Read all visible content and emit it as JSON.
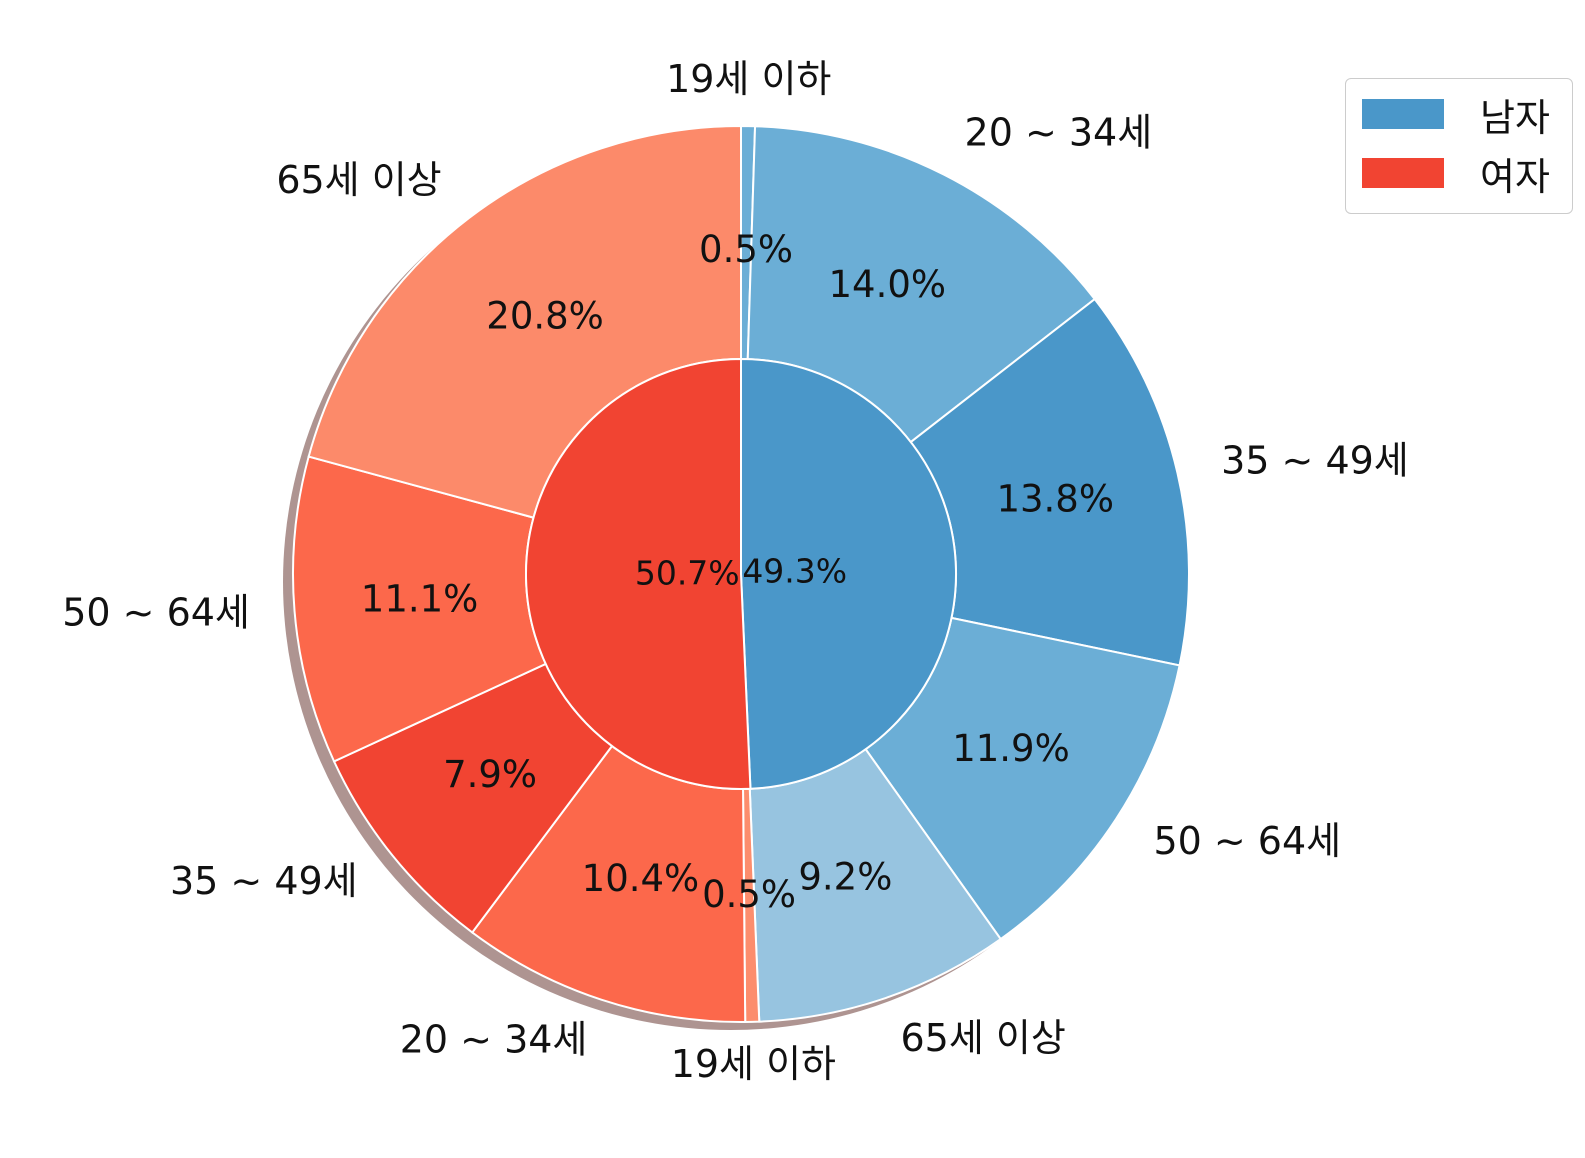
{
  "chart_data": {
    "type": "pie",
    "variant": "nested-donut",
    "shadow": true,
    "legend": {
      "position": "top-right",
      "entries": [
        {
          "label": "남자",
          "color": "#4a97c9"
        },
        {
          "label": "여자",
          "color": "#f14432"
        }
      ]
    },
    "inner": {
      "categories": [
        "남자",
        "여자"
      ],
      "values": [
        49.3,
        50.7
      ],
      "labels": [
        "49.3%",
        "50.7%"
      ],
      "colors": [
        "#4a97c9",
        "#f14432"
      ]
    },
    "outer": {
      "categories": [
        "19세 이하",
        "20 ~ 34세",
        "35 ~ 49세",
        "50 ~ 64세",
        "65세 이상",
        "19세 이하",
        "20 ~ 34세",
        "35 ~ 49세",
        "50 ~ 64세",
        "65세 이상"
      ],
      "groups": [
        "남자",
        "남자",
        "남자",
        "남자",
        "남자",
        "여자",
        "여자",
        "여자",
        "여자",
        "여자"
      ],
      "values": [
        0.5,
        14.0,
        13.8,
        11.9,
        9.2,
        0.5,
        10.4,
        7.9,
        11.1,
        20.8
      ],
      "labels": [
        "0.5%",
        "14.0%",
        "13.8%",
        "11.9%",
        "9.2%",
        "0.5%",
        "10.4%",
        "7.9%",
        "11.1%",
        "20.8%"
      ],
      "colors": [
        "#6baed6",
        "#6baed6",
        "#4a97c9",
        "#6baed6",
        "#97c4e0",
        "#fc8d6d",
        "#fc684b",
        "#f14432",
        "#fc684b",
        "#fc8a6a"
      ]
    }
  }
}
